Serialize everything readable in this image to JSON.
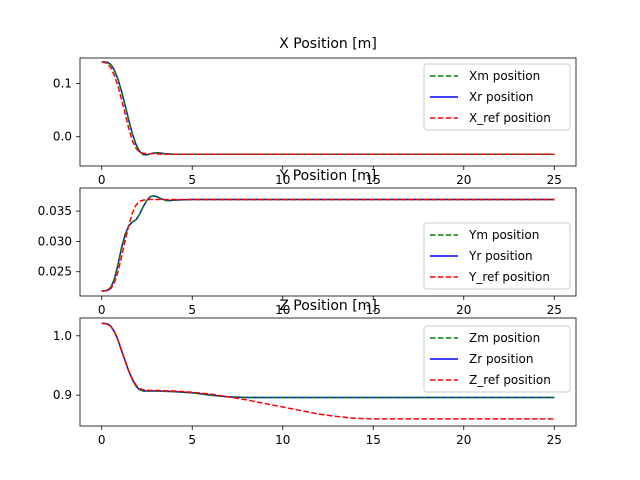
{
  "chart_data": [
    {
      "type": "line",
      "title": "X Position [m]",
      "xlabel": "",
      "ylabel": "",
      "xlim": [
        -1.2,
        26.2
      ],
      "ylim": [
        -0.055,
        0.148
      ],
      "xticks": [
        0,
        5,
        10,
        15,
        20,
        25
      ],
      "yticks": [
        0.1,
        0.0
      ],
      "ytick_labels": [
        "0.1",
        "0.0"
      ],
      "grid": false,
      "legend_loc": "upper right",
      "series": [
        {
          "name": "Xm position",
          "color": "#008000",
          "dash": "dashed",
          "x": [
            0,
            0.3,
            0.5,
            0.7,
            0.9,
            1.1,
            1.3,
            1.5,
            1.7,
            1.9,
            2.1,
            2.3,
            2.5,
            2.8,
            3.1,
            3.5,
            4,
            5,
            10,
            15,
            20,
            25
          ],
          "y": [
            0.141,
            0.14,
            0.136,
            0.125,
            0.108,
            0.085,
            0.058,
            0.03,
            0.005,
            -0.015,
            -0.028,
            -0.034,
            -0.034,
            -0.031,
            -0.03,
            -0.032,
            -0.033,
            -0.033,
            -0.033,
            -0.033,
            -0.033,
            -0.033
          ]
        },
        {
          "name": "Xr position",
          "color": "#0000ff",
          "dash": "solid",
          "x": [
            0,
            0.3,
            0.5,
            0.7,
            0.9,
            1.1,
            1.3,
            1.5,
            1.7,
            1.9,
            2.1,
            2.3,
            2.5,
            2.8,
            3.1,
            3.5,
            4,
            5,
            10,
            15,
            20,
            25
          ],
          "y": [
            0.141,
            0.14,
            0.136,
            0.125,
            0.108,
            0.085,
            0.058,
            0.03,
            0.005,
            -0.015,
            -0.028,
            -0.034,
            -0.034,
            -0.031,
            -0.03,
            -0.032,
            -0.033,
            -0.033,
            -0.033,
            -0.033,
            -0.033,
            -0.033
          ]
        },
        {
          "name": "X_ref position",
          "color": "#ff0000",
          "dash": "dashed",
          "x": [
            0,
            0.3,
            0.5,
            0.7,
            0.9,
            1.1,
            1.3,
            1.5,
            1.7,
            1.9,
            2.1,
            2.3,
            2.6,
            3.0,
            3.5,
            5,
            10,
            15,
            20,
            25
          ],
          "y": [
            0.141,
            0.138,
            0.13,
            0.115,
            0.095,
            0.07,
            0.042,
            0.015,
            -0.008,
            -0.022,
            -0.029,
            -0.031,
            -0.032,
            -0.032,
            -0.033,
            -0.033,
            -0.033,
            -0.033,
            -0.033,
            -0.033
          ]
        }
      ]
    },
    {
      "type": "line",
      "title": "Y Position [m]",
      "xlabel": "",
      "ylabel": "",
      "xlim": [
        -1.2,
        26.2
      ],
      "ylim": [
        0.021,
        0.0388
      ],
      "xticks": [
        0,
        5,
        10,
        15,
        20,
        25
      ],
      "yticks": [
        0.035,
        0.03,
        0.025
      ],
      "ytick_labels": [
        "0.035",
        "0.030",
        "0.025"
      ],
      "grid": false,
      "legend_loc": "lower right",
      "series": [
        {
          "name": "Ym position",
          "color": "#008000",
          "dash": "dashed",
          "x": [
            0,
            0.3,
            0.5,
            0.7,
            0.9,
            1.1,
            1.3,
            1.5,
            1.7,
            1.9,
            2.1,
            2.3,
            2.5,
            2.7,
            2.9,
            3.1,
            3.3,
            3.6,
            4.0,
            5,
            10,
            15,
            20,
            25
          ],
          "y": [
            0.0218,
            0.0219,
            0.0224,
            0.0238,
            0.0262,
            0.029,
            0.0312,
            0.0326,
            0.0332,
            0.0336,
            0.0345,
            0.0358,
            0.0368,
            0.0374,
            0.0375,
            0.0373,
            0.037,
            0.0367,
            0.0368,
            0.0369,
            0.0369,
            0.0369,
            0.0369,
            0.0369
          ]
        },
        {
          "name": "Yr position",
          "color": "#0000ff",
          "dash": "solid",
          "x": [
            0,
            0.3,
            0.5,
            0.7,
            0.9,
            1.1,
            1.3,
            1.5,
            1.7,
            1.9,
            2.1,
            2.3,
            2.5,
            2.7,
            2.9,
            3.1,
            3.3,
            3.6,
            4.0,
            5,
            10,
            15,
            20,
            25
          ],
          "y": [
            0.0218,
            0.0219,
            0.0224,
            0.0238,
            0.0262,
            0.029,
            0.0312,
            0.0326,
            0.0332,
            0.0336,
            0.0345,
            0.0358,
            0.0368,
            0.0374,
            0.0375,
            0.0373,
            0.037,
            0.0367,
            0.0368,
            0.0369,
            0.0369,
            0.0369,
            0.0369,
            0.0369
          ]
        },
        {
          "name": "Y_ref position",
          "color": "#ff0000",
          "dash": "dashed",
          "x": [
            0,
            0.3,
            0.5,
            0.7,
            0.9,
            1.1,
            1.3,
            1.5,
            1.7,
            1.9,
            2.1,
            2.3,
            2.6,
            3.0,
            3.5,
            5,
            10,
            15,
            20,
            25
          ],
          "y": [
            0.0218,
            0.0219,
            0.0222,
            0.0232,
            0.025,
            0.0275,
            0.0302,
            0.0327,
            0.0347,
            0.036,
            0.0366,
            0.0368,
            0.0369,
            0.0369,
            0.0369,
            0.0369,
            0.0369,
            0.0369,
            0.0369,
            0.0369
          ]
        }
      ]
    },
    {
      "type": "line",
      "title": "Z Position [m]",
      "xlabel": "",
      "ylabel": "",
      "xlim": [
        -1.2,
        26.2
      ],
      "ylim": [
        0.848,
        1.03
      ],
      "xticks": [
        0,
        5,
        10,
        15,
        20,
        25
      ],
      "yticks": [
        1.0,
        0.9
      ],
      "ytick_labels": [
        "1.0",
        "0.9"
      ],
      "grid": false,
      "legend_loc": "upper right",
      "series": [
        {
          "name": "Zm position",
          "color": "#008000",
          "dash": "dashed",
          "x": [
            0,
            0.3,
            0.5,
            0.7,
            0.9,
            1.1,
            1.3,
            1.5,
            1.7,
            1.9,
            2.1,
            2.3,
            2.6,
            3.0,
            4,
            5,
            6,
            7,
            8,
            10,
            15,
            20,
            25
          ],
          "y": [
            1.021,
            1.02,
            1.016,
            1.007,
            0.993,
            0.975,
            0.957,
            0.94,
            0.926,
            0.915,
            0.909,
            0.907,
            0.907,
            0.907,
            0.906,
            0.904,
            0.9,
            0.897,
            0.896,
            0.896,
            0.896,
            0.896,
            0.896
          ]
        },
        {
          "name": "Zr position",
          "color": "#0000ff",
          "dash": "solid",
          "x": [
            0,
            0.3,
            0.5,
            0.7,
            0.9,
            1.1,
            1.3,
            1.5,
            1.7,
            1.9,
            2.1,
            2.3,
            2.6,
            3.0,
            4,
            5,
            6,
            7,
            8,
            10,
            15,
            20,
            25
          ],
          "y": [
            1.021,
            1.02,
            1.016,
            1.007,
            0.993,
            0.975,
            0.957,
            0.94,
            0.926,
            0.915,
            0.909,
            0.907,
            0.907,
            0.907,
            0.906,
            0.904,
            0.9,
            0.897,
            0.896,
            0.896,
            0.896,
            0.896,
            0.896
          ]
        },
        {
          "name": "Z_ref position",
          "color": "#ff0000",
          "dash": "dashed",
          "x": [
            0,
            0.3,
            0.5,
            0.7,
            0.9,
            1.1,
            1.3,
            1.5,
            1.7,
            1.9,
            2.1,
            2.3,
            2.6,
            3.0,
            4,
            5,
            6,
            7,
            8,
            9,
            10,
            11,
            12,
            13,
            14,
            15,
            17,
            20,
            25
          ],
          "y": [
            1.021,
            1.02,
            1.016,
            1.007,
            0.993,
            0.975,
            0.957,
            0.94,
            0.927,
            0.917,
            0.911,
            0.909,
            0.908,
            0.908,
            0.907,
            0.905,
            0.902,
            0.897,
            0.892,
            0.886,
            0.88,
            0.874,
            0.868,
            0.864,
            0.861,
            0.86,
            0.86,
            0.86,
            0.86
          ]
        }
      ]
    }
  ]
}
